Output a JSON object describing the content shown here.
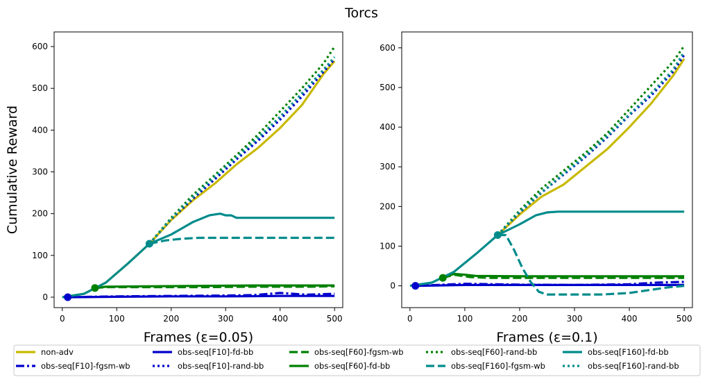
{
  "figure": {
    "title": "Torcs"
  },
  "chart_data": [
    {
      "type": "line",
      "xlabel": "Frames (ε=0.05)",
      "ylabel": "Cumulative Reward",
      "xlim": [
        -15,
        515
      ],
      "ylim": [
        -25,
        635
      ],
      "xticks": [
        0,
        100,
        200,
        300,
        400,
        500
      ],
      "yticks": [
        0,
        100,
        200,
        300,
        400,
        500,
        600
      ],
      "markers": [
        {
          "x": 10,
          "y": 0,
          "color": "#0000cc"
        },
        {
          "x": 60,
          "y": 22,
          "color": "#008000"
        },
        {
          "x": 160,
          "y": 128,
          "color": "#008b8b"
        }
      ],
      "series": [
        {
          "name": "non-adv",
          "color": "#c8b900",
          "style": "solid",
          "x": [
            0,
            40,
            80,
            120,
            160,
            200,
            240,
            280,
            320,
            360,
            400,
            440,
            480,
            500
          ],
          "y": [
            0,
            8,
            35,
            80,
            128,
            185,
            232,
            272,
            318,
            358,
            405,
            460,
            535,
            565
          ]
        },
        {
          "name": "obs-seq[F10]-fgsm-wb",
          "color": "#0000cc",
          "style": "dashdot",
          "x": [
            10,
            100,
            200,
            300,
            350,
            400,
            450,
            500
          ],
          "y": [
            0,
            2,
            3,
            4,
            5,
            10,
            6,
            8
          ]
        },
        {
          "name": "obs-seq[F10]-rand-bb",
          "color": "#0000cc",
          "style": "dotted",
          "x": [
            160,
            200,
            240,
            280,
            320,
            360,
            400,
            440,
            480,
            500
          ],
          "y": [
            128,
            187,
            236,
            282,
            330,
            375,
            425,
            480,
            540,
            570
          ]
        },
        {
          "name": "obs-seq[F10]-fd-bb",
          "color": "#0000cc",
          "style": "solid",
          "x": [
            10,
            100,
            200,
            300,
            400,
            500
          ],
          "y": [
            0,
            1,
            2,
            2,
            3,
            3
          ]
        },
        {
          "name": "obs-seq[F60]-fgsm-wb",
          "color": "#008000",
          "style": "dashed",
          "x": [
            60,
            80,
            150,
            250,
            350,
            450,
            500
          ],
          "y": [
            22,
            24,
            24,
            24,
            25,
            25,
            26
          ]
        },
        {
          "name": "obs-seq[F60]-fd-bb",
          "color": "#008000",
          "style": "solid",
          "x": [
            60,
            80,
            150,
            250,
            350,
            450,
            500
          ],
          "y": [
            22,
            25,
            26,
            27,
            28,
            28,
            28
          ]
        },
        {
          "name": "obs-seq[F60]-rand-bb",
          "color": "#008000",
          "style": "dotted",
          "x": [
            160,
            200,
            240,
            280,
            320,
            360,
            400,
            440,
            480,
            500
          ],
          "y": [
            128,
            190,
            245,
            292,
            340,
            390,
            445,
            500,
            560,
            600
          ]
        },
        {
          "name": "obs-seq[F160]-fgsm-wb",
          "color": "#008b8b",
          "style": "dashed",
          "x": [
            160,
            190,
            220,
            250,
            280,
            350,
            420,
            500
          ],
          "y": [
            128,
            136,
            140,
            142,
            142,
            142,
            142,
            142
          ]
        },
        {
          "name": "obs-seq[F160]-fd-bb",
          "color": "#008b8b",
          "style": "solid",
          "x": [
            0,
            40,
            80,
            120,
            160,
            200,
            240,
            270,
            290,
            300,
            310,
            320,
            400,
            500
          ],
          "y": [
            0,
            8,
            35,
            80,
            128,
            150,
            180,
            196,
            200,
            196,
            196,
            190,
            190,
            190
          ]
        },
        {
          "name": "obs-seq[F160]-rand-bb",
          "color": "#008b8b",
          "style": "dotted",
          "x": [
            160,
            200,
            240,
            280,
            320,
            360,
            400,
            440,
            480,
            500
          ],
          "y": [
            128,
            188,
            240,
            288,
            335,
            382,
            432,
            488,
            545,
            575
          ]
        }
      ]
    },
    {
      "type": "line",
      "xlabel": "Frames (ε=0.1)",
      "ylabel": "",
      "xlim": [
        -15,
        515
      ],
      "ylim": [
        -55,
        640
      ],
      "xticks": [
        0,
        100,
        200,
        300,
        400,
        500
      ],
      "yticks": [
        0,
        100,
        200,
        300,
        400,
        500,
        600
      ],
      "markers": [
        {
          "x": 10,
          "y": 0,
          "color": "#0000cc"
        },
        {
          "x": 60,
          "y": 20,
          "color": "#008000"
        },
        {
          "x": 160,
          "y": 128,
          "color": "#008b8b"
        }
      ],
      "series": [
        {
          "name": "non-adv",
          "color": "#c8b900",
          "style": "solid",
          "x": [
            160,
            200,
            240,
            280,
            320,
            360,
            400,
            440,
            480,
            500
          ],
          "y": [
            128,
            180,
            225,
            255,
            300,
            345,
            400,
            460,
            530,
            572
          ]
        },
        {
          "name": "obs-seq[F10]-fgsm-wb",
          "color": "#0000cc",
          "style": "dashdot",
          "x": [
            10,
            100,
            200,
            300,
            400,
            450,
            500
          ],
          "y": [
            0,
            5,
            3,
            2,
            4,
            8,
            10
          ]
        },
        {
          "name": "obs-seq[F10]-rand-bb",
          "color": "#0000cc",
          "style": "dotted",
          "x": [
            160,
            200,
            240,
            280,
            320,
            360,
            400,
            440,
            480,
            500
          ],
          "y": [
            128,
            185,
            235,
            280,
            325,
            375,
            430,
            480,
            540,
            582
          ]
        },
        {
          "name": "obs-seq[F10]-fd-bb",
          "color": "#0000cc",
          "style": "solid",
          "x": [
            10,
            100,
            200,
            300,
            400,
            500
          ],
          "y": [
            0,
            2,
            2,
            2,
            2,
            2
          ]
        },
        {
          "name": "obs-seq[F60]-fgsm-wb",
          "color": "#008000",
          "style": "dashed",
          "x": [
            60,
            80,
            110,
            150,
            250,
            350,
            450,
            500
          ],
          "y": [
            20,
            28,
            22,
            20,
            20,
            20,
            20,
            20
          ]
        },
        {
          "name": "obs-seq[F60]-fd-bb",
          "color": "#008000",
          "style": "solid",
          "x": [
            60,
            80,
            100,
            120,
            200,
            300,
            400,
            500
          ],
          "y": [
            20,
            30,
            28,
            25,
            24,
            24,
            24,
            24
          ]
        },
        {
          "name": "obs-seq[F60]-rand-bb",
          "color": "#008000",
          "style": "dotted",
          "x": [
            160,
            200,
            240,
            280,
            320,
            360,
            400,
            440,
            480,
            500
          ],
          "y": [
            128,
            190,
            245,
            290,
            335,
            385,
            445,
            505,
            565,
            605
          ]
        },
        {
          "name": "obs-seq[F160]-fgsm-wb",
          "color": "#008b8b",
          "style": "dashed",
          "x": [
            160,
            175,
            190,
            205,
            220,
            235,
            250,
            300,
            350,
            400,
            440,
            470,
            500
          ],
          "y": [
            128,
            128,
            90,
            45,
            10,
            -15,
            -22,
            -22,
            -22,
            -18,
            -10,
            -4,
            0
          ]
        },
        {
          "name": "obs-seq[F160]-fd-bb",
          "color": "#008b8b",
          "style": "solid",
          "x": [
            0,
            40,
            80,
            120,
            160,
            200,
            230,
            250,
            270,
            300,
            400,
            500
          ],
          "y": [
            0,
            8,
            35,
            80,
            128,
            155,
            178,
            185,
            187,
            187,
            187,
            187
          ]
        },
        {
          "name": "obs-seq[F160]-rand-bb",
          "color": "#008b8b",
          "style": "dotted",
          "x": [
            160,
            200,
            240,
            280,
            320,
            360,
            400,
            440,
            480,
            500
          ],
          "y": [
            128,
            187,
            236,
            282,
            328,
            378,
            432,
            485,
            545,
            590
          ]
        }
      ]
    }
  ],
  "legend": [
    {
      "label": "non-adv",
      "color": "#c8b900",
      "style": "solid"
    },
    {
      "label": "obs-seq[F10]-fgsm-wb",
      "color": "#0000cc",
      "style": "dashdot"
    },
    {
      "label": "obs-seq[F10]-fd-bb",
      "color": "#0000cc",
      "style": "solid"
    },
    {
      "label": "obs-seq[F10]-rand-bb",
      "color": "#0000cc",
      "style": "dotted"
    },
    {
      "label": "obs-seq[F60]-fgsm-wb",
      "color": "#008000",
      "style": "dashed"
    },
    {
      "label": "obs-seq[F60]-fd-bb",
      "color": "#008000",
      "style": "solid"
    },
    {
      "label": "obs-seq[F60]-rand-bb",
      "color": "#008000",
      "style": "dotted"
    },
    {
      "label": "obs-seq[F160]-fgsm-wb",
      "color": "#008b8b",
      "style": "dashed"
    },
    {
      "label": "obs-seq[F160]-fd-bb",
      "color": "#008b8b",
      "style": "solid"
    },
    {
      "label": "obs-seq[F160]-rand-bb",
      "color": "#008b8b",
      "style": "dotted"
    }
  ]
}
